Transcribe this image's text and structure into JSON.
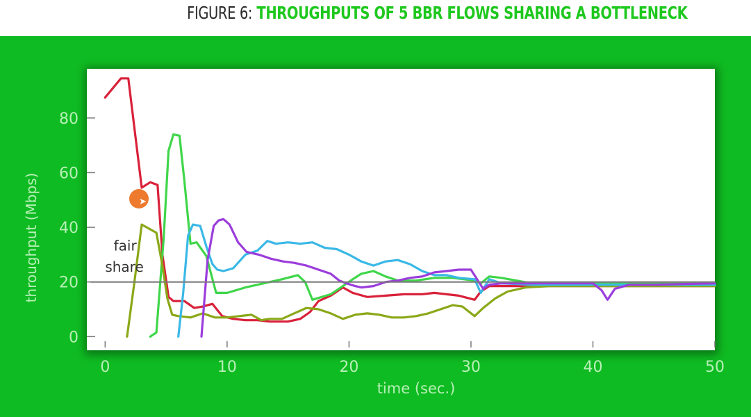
{
  "figure": {
    "prefix": "FIGURE 6:",
    "title": "THROUGHPUTS OF 5 BBR FLOWS SHARING A BOTTLENECK"
  },
  "colors": {
    "panel_green": "#0fbb22",
    "title_green": "#1ec81e",
    "axis_text": "#b8f0b8",
    "flow_red": "#d9213a",
    "flow_light_green": "#3fd64a",
    "flow_olive": "#8aa818",
    "flow_cyan": "#3ab8e6",
    "flow_purple": "#9b3ddc",
    "fair_share_line": "#7a7a7a"
  },
  "chart_data": {
    "type": "line",
    "title": "THROUGHPUTS OF 5 BBR FLOWS SHARING A BOTTLENECK",
    "xlabel": "time (sec.)",
    "ylabel": "throughput (Mbps)",
    "xlim": [
      -1.5,
      50
    ],
    "ylim": [
      -5,
      98
    ],
    "xticks": [
      0,
      10,
      20,
      30,
      40,
      50
    ],
    "yticks": [
      0,
      20,
      40,
      60,
      80
    ],
    "grid": false,
    "legend": "none",
    "annotations": [
      {
        "text": "fair",
        "x": 0.7,
        "y": 31.5
      },
      {
        "text": "share",
        "x": 0.0,
        "y": 23.8
      },
      {
        "type": "hline",
        "y": 20,
        "x_from": -1.2,
        "x_to": 50
      }
    ],
    "series": [
      {
        "color": "#d9213a",
        "x": [
          0,
          1.3,
          1.9,
          3.0,
          3.7,
          4.3,
          4.7,
          5.2,
          5.6,
          6.5,
          7.3,
          8.0,
          8.8,
          9.6,
          10.5,
          11.5,
          12.5,
          13.5,
          15.0,
          16.0,
          16.8,
          17.5,
          18.5,
          19.5,
          20.3,
          21.5,
          23.0,
          24.5,
          26.0,
          27.0,
          28.0,
          29.0,
          30.3,
          30.8,
          31.5,
          32.5,
          35.0,
          40.0,
          45.0,
          50.0
        ],
        "y": [
          87.5,
          94.5,
          94.5,
          54.5,
          56.5,
          55.5,
          30.0,
          14.5,
          13.0,
          13.0,
          10.5,
          11.0,
          12.0,
          7.5,
          6.5,
          6.0,
          6.0,
          5.5,
          5.5,
          6.5,
          9.0,
          13.0,
          15.0,
          18.0,
          16.0,
          14.5,
          15.0,
          15.5,
          15.5,
          16.0,
          15.5,
          15.0,
          13.5,
          16.5,
          18.5,
          18.5,
          18.5,
          18.5,
          18.5,
          18.5
        ]
      },
      {
        "color": "#3fd64a",
        "x": [
          3.7,
          4.2,
          4.8,
          5.2,
          5.6,
          6.1,
          6.5,
          7.0,
          7.5,
          8.3,
          9.1,
          10.0,
          11.5,
          13.0,
          14.5,
          15.8,
          16.4,
          17.0,
          18.5,
          19.5,
          20.3,
          21.0,
          22.0,
          23.0,
          24.0,
          25.5,
          27.0,
          28.5,
          30.3,
          30.8,
          31.5,
          32.5,
          35.0,
          40.0,
          45.0,
          50.0
        ],
        "y": [
          0,
          1.5,
          36.0,
          68.0,
          74.0,
          73.5,
          57.0,
          34.0,
          34.5,
          29.5,
          16.0,
          16.0,
          18.0,
          19.5,
          21.0,
          22.5,
          20.0,
          13.5,
          15.5,
          18.5,
          21.0,
          23.0,
          24.0,
          22.0,
          20.5,
          20.5,
          21.5,
          21.5,
          20.5,
          19.5,
          22.0,
          21.5,
          19.5,
          19.5,
          19.5,
          19.5
        ]
      },
      {
        "color": "#8aa818",
        "x": [
          1.8,
          2.4,
          3.0,
          3.6,
          4.2,
          4.7,
          5.1,
          5.5,
          6.0,
          7.0,
          8.0,
          9.0,
          10.0,
          11.0,
          12.0,
          12.8,
          13.5,
          14.5,
          15.5,
          16.5,
          17.5,
          18.5,
          19.5,
          20.5,
          21.5,
          22.5,
          23.5,
          24.5,
          25.5,
          26.5,
          27.5,
          28.5,
          29.3,
          30.3,
          31.0,
          32.0,
          33.0,
          34.5,
          36.5,
          40.0,
          45.0,
          50.0
        ],
        "y": [
          0,
          20.0,
          41.0,
          39.5,
          38.0,
          26.0,
          14.0,
          8.0,
          7.5,
          7.0,
          8.5,
          7.0,
          7.0,
          7.5,
          8.0,
          6.0,
          6.5,
          6.5,
          8.5,
          10.5,
          10.0,
          8.5,
          6.5,
          8.0,
          8.5,
          8.0,
          7.0,
          7.0,
          7.5,
          8.5,
          10.0,
          11.5,
          11.0,
          7.5,
          10.5,
          14.0,
          16.5,
          18.0,
          18.5,
          18.5,
          18.5,
          18.5
        ]
      },
      {
        "color": "#3ab8e6",
        "x": [
          6.0,
          6.4,
          6.8,
          7.2,
          7.8,
          8.3,
          8.8,
          9.2,
          9.7,
          10.5,
          11.5,
          12.5,
          13.3,
          14.0,
          15.0,
          16.0,
          17.0,
          18.0,
          19.0,
          20.0,
          21.0,
          22.0,
          23.0,
          24.0,
          25.0,
          26.0,
          27.0,
          28.0,
          29.0,
          30.3,
          30.8,
          31.5,
          32.5,
          35.0,
          40.0,
          45.0,
          50.0
        ],
        "y": [
          0,
          16.0,
          37.0,
          41.0,
          40.5,
          33.0,
          26.5,
          24.5,
          24.0,
          25.0,
          30.0,
          31.5,
          35.0,
          34.0,
          34.5,
          34.0,
          34.5,
          32.5,
          32.0,
          30.0,
          27.5,
          26.0,
          27.5,
          28.0,
          26.5,
          24.0,
          22.5,
          22.5,
          21.5,
          21.0,
          16.0,
          21.0,
          19.5,
          19.0,
          19.0,
          19.0,
          19.0
        ]
      },
      {
        "color": "#9b3ddc",
        "x": [
          7.9,
          8.4,
          8.9,
          9.3,
          9.7,
          10.2,
          10.9,
          11.6,
          12.6,
          13.6,
          14.6,
          15.5,
          16.5,
          17.5,
          18.5,
          19.2,
          19.8,
          20.5,
          21.0,
          22.0,
          23.0,
          24.0,
          25.0,
          26.0,
          27.0,
          28.0,
          29.0,
          30.0,
          30.5,
          31.0,
          31.5,
          32.5,
          35.0,
          40.0,
          40.7,
          41.2,
          41.8,
          43.0,
          45.0,
          50.0
        ],
        "y": [
          0,
          28.0,
          40.5,
          42.5,
          43.0,
          41.0,
          34.5,
          31.0,
          30.0,
          28.5,
          27.5,
          27.0,
          26.0,
          24.5,
          23.0,
          20.5,
          19.5,
          18.5,
          18.0,
          18.5,
          20.0,
          20.5,
          21.5,
          22.0,
          23.5,
          24.0,
          24.5,
          24.5,
          21.0,
          17.5,
          19.0,
          19.5,
          19.5,
          19.5,
          17.0,
          13.5,
          17.5,
          19.0,
          19.0,
          19.5
        ]
      }
    ]
  }
}
